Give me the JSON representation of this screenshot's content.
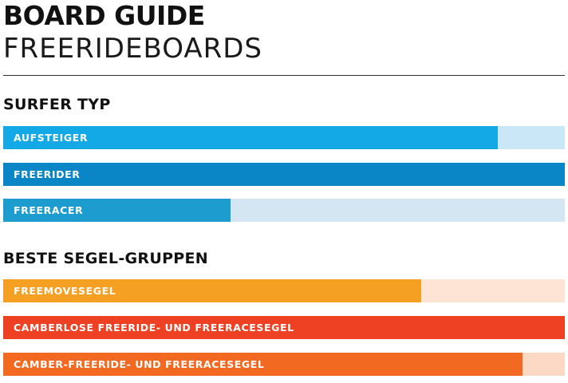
{
  "header": {
    "title": "BOARD GUIDE",
    "subtitle": "FREERIDEBOARDS"
  },
  "chart_data": [
    {
      "type": "bar",
      "orientation": "horizontal",
      "title": "SURFER TYP",
      "categories": [
        "AUFSTEIGER",
        "FREERIDER",
        "FREERACER"
      ],
      "values": [
        0.88,
        1.0,
        0.405
      ],
      "xlim": [
        0,
        1
      ],
      "colors": [
        "#12a9e6",
        "#0a86c7",
        "#1c9ccf"
      ],
      "track_colors": [
        "#c9e7f7",
        "#cfe3f0",
        "#d3e6f1"
      ]
    },
    {
      "type": "bar",
      "orientation": "horizontal",
      "title": "BESTE SEGEL-GRUPPEN",
      "categories": [
        "FREEMOVESEGEL",
        "CAMBERLOSE FREERIDE- UND FREERACESEGEL",
        "CAMBER-FREERIDE- UND FREERACESEGEL"
      ],
      "values": [
        0.745,
        1.0,
        0.925
      ],
      "xlim": [
        0,
        1
      ],
      "colors": [
        "#f5a022",
        "#ee4123",
        "#f26a21"
      ],
      "track_colors": [
        "#fde4d4",
        "#fde0d6",
        "#fbd9c4"
      ]
    }
  ]
}
